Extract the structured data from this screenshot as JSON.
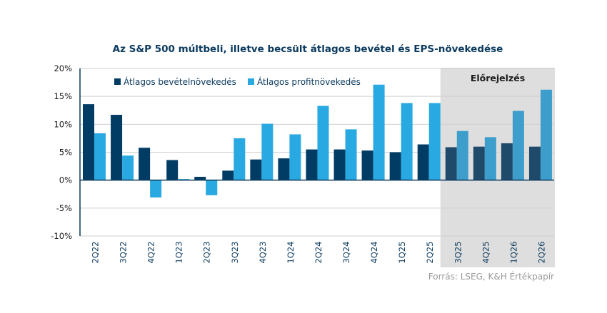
{
  "chart_data": {
    "type": "bar",
    "title": "Az S&P 500 múltbeli, illetve becsült átlagos bevétel és EPS-növekedése",
    "xlabel": "",
    "ylabel": "",
    "ylim": [
      -10,
      20
    ],
    "y_ticks": [
      20,
      15,
      10,
      5,
      0,
      -5,
      -10
    ],
    "y_tick_labels": [
      "20%",
      "15%",
      "10%",
      "5%",
      "0%",
      "-5%",
      "-10%"
    ],
    "grid": true,
    "legend_position": "top-left",
    "categories": [
      "2Q22",
      "3Q22",
      "4Q22",
      "1Q23",
      "2Q23",
      "3Q23",
      "4Q23",
      "1Q24",
      "2Q24",
      "3Q24",
      "4Q24",
      "1Q25",
      "2Q25",
      "3Q25",
      "4Q25",
      "1Q26",
      "2Q26"
    ],
    "series": [
      {
        "name": "Átlagos bevételnövekedés",
        "color": "#003c64",
        "forecast_color": "#1f4a6a",
        "values": [
          13.6,
          11.7,
          5.8,
          3.6,
          0.6,
          1.7,
          3.7,
          3.9,
          5.5,
          5.5,
          5.3,
          5.0,
          6.4,
          5.9,
          6.0,
          6.6,
          6.0
        ]
      },
      {
        "name": "Átlagos profitnövekedés",
        "color": "#29a9e1",
        "forecast_color": "#3d9dcb",
        "values": [
          8.4,
          4.4,
          -3.1,
          0.2,
          -2.7,
          7.5,
          10.1,
          8.2,
          13.3,
          9.1,
          17.1,
          13.8,
          13.8,
          8.8,
          7.7,
          12.4,
          16.2
        ]
      }
    ],
    "forecast": {
      "label": "Előrejelzés",
      "start_category": "3Q25",
      "end_category": "2Q26",
      "background_color": "#dedede"
    },
    "source": "Forrás: LSEG, K&H Értékpapír"
  }
}
